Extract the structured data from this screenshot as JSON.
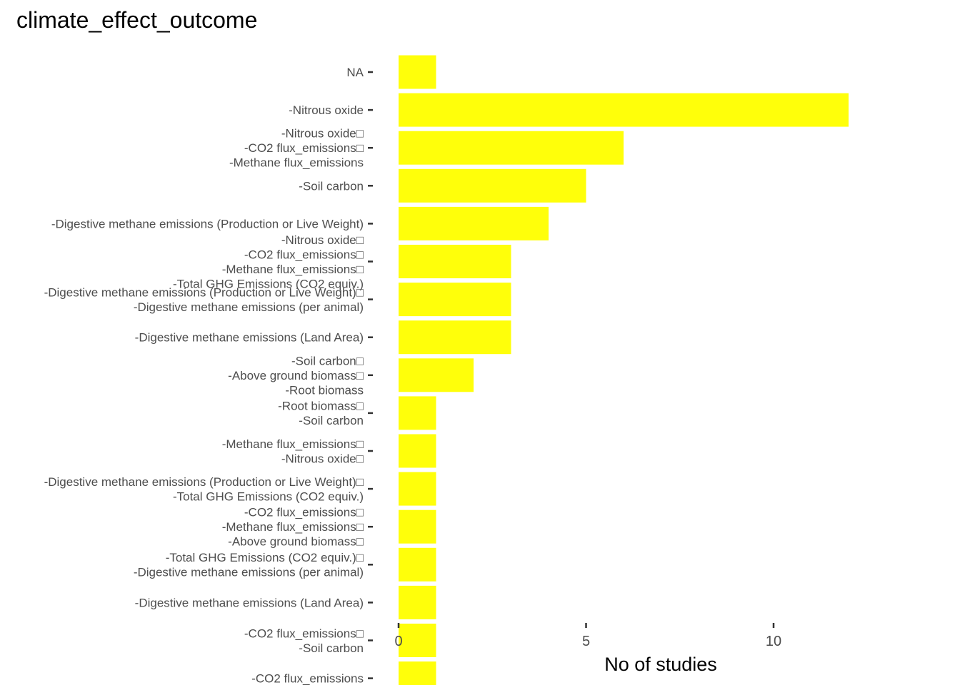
{
  "chart_data": {
    "type": "bar",
    "orientation": "horizontal",
    "title": "climate_effect_outcome",
    "xlabel": "No of studies",
    "ylabel": "",
    "xlim": [
      0,
      14
    ],
    "xticks": [
      0,
      5,
      10
    ],
    "grid": false,
    "bar_color": "#FFFF0A",
    "categories": [
      {
        "lines": [
          "NA"
        ],
        "value": 1
      },
      {
        "lines": [
          "-Nitrous oxide"
        ],
        "value": 12
      },
      {
        "lines": [
          "-Nitrous oxide□",
          "-CO2 flux_emissions□",
          "-Methane flux_emissions"
        ],
        "value": 6
      },
      {
        "lines": [
          "-Soil carbon"
        ],
        "value": 5
      },
      {
        "lines": [
          "-Digestive methane emissions (Production or Live Weight)"
        ],
        "value": 4
      },
      {
        "lines": [
          "-Nitrous oxide□",
          "-CO2 flux_emissions□",
          "-Methane flux_emissions□",
          "-Total GHG Emissions (CO2 equiv.)"
        ],
        "value": 3
      },
      {
        "lines": [
          "-Digestive methane emissions (Production or Live Weight)□",
          "-Digestive methane emissions (per animal)"
        ],
        "value": 3
      },
      {
        "lines": [
          "-Digestive methane emissions (Land Area)"
        ],
        "value": 3
      },
      {
        "lines": [
          "-Soil carbon□",
          "-Above ground biomass□",
          "-Root biomass"
        ],
        "value": 2
      },
      {
        "lines": [
          "-Root biomass□",
          "-Soil carbon"
        ],
        "value": 1
      },
      {
        "lines": [
          "-Methane flux_emissions□",
          "-Nitrous oxide□"
        ],
        "value": 1
      },
      {
        "lines": [
          "-Digestive methane emissions (Production or Live Weight)□",
          "-Total GHG Emissions (CO2 equiv.)"
        ],
        "value": 1
      },
      {
        "lines": [
          "-CO2 flux_emissions□",
          "-Methane flux_emissions□",
          "-Above ground biomass□"
        ],
        "value": 1
      },
      {
        "lines": [
          "-Total GHG Emissions (CO2 equiv.)□",
          "-Digestive methane emissions (per animal)"
        ],
        "value": 1
      },
      {
        "lines": [
          "-Digestive methane emissions (Land Area)"
        ],
        "value": 1
      },
      {
        "lines": [
          "-CO2 flux_emissions□",
          "-Soil carbon"
        ],
        "value": 1
      },
      {
        "lines": [
          "-CO2 flux_emissions"
        ],
        "value": 1
      }
    ]
  }
}
